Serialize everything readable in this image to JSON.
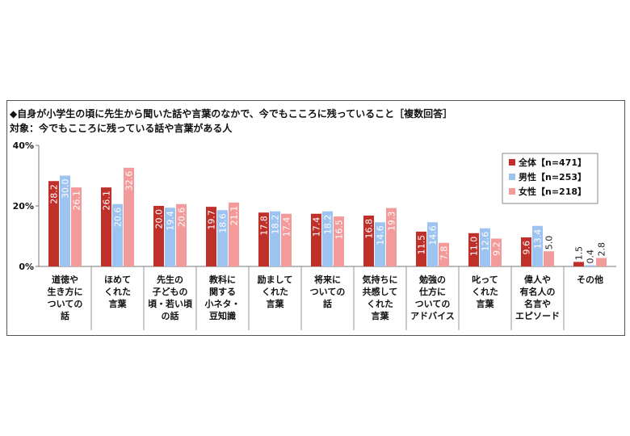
{
  "title": "◆自身が小学生の頃に先生から聞いた話や言葉のなかで、今でもこころに残っていること［複数回答］",
  "subtitle": "対象：今でもこころに残っている話や言葉がある人",
  "colors": {
    "all": "#c0302b",
    "male": "#9dc3f0",
    "female": "#f39a9a"
  },
  "chart_data": {
    "type": "bar",
    "title": "◆自身が小学生の頃に先生から聞いた話や言葉のなかで、今でもこころに残っていること［複数回答］",
    "subtitle": "対象：今でもこころに残っている話や言葉がある人",
    "categories": [
      [
        "道徳や",
        "生き方に",
        "ついての",
        "話"
      ],
      [
        "ほめて",
        "くれた",
        "言葉"
      ],
      [
        "先生の",
        "子どもの",
        "頃・若い頃",
        "の話"
      ],
      [
        "教科に",
        "関する",
        "小ネタ・",
        "豆知識"
      ],
      [
        "励まして",
        "くれた",
        "言葉"
      ],
      [
        "将来に",
        "ついての",
        "話"
      ],
      [
        "気持ちに",
        "共感して",
        "くれた",
        "言葉"
      ],
      [
        "勉強の",
        "仕方に",
        "ついての",
        "アドバイス"
      ],
      [
        "叱って",
        "くれた",
        "言葉"
      ],
      [
        "偉人や",
        "有名人の",
        "名言や",
        "エピソード"
      ],
      [
        "その他"
      ]
    ],
    "series": [
      {
        "name": "全体【n=471】",
        "values": [
          28.2,
          26.1,
          20.0,
          19.7,
          17.8,
          17.4,
          16.8,
          11.5,
          11.0,
          9.6,
          1.5
        ],
        "labels": [
          "28.2",
          "26.1",
          "20.0",
          "19.7",
          "17.8",
          "17.4",
          "16.8",
          "11.5",
          "11.0",
          "9.6",
          "1.5"
        ]
      },
      {
        "name": "男性【n=253】",
        "values": [
          30.0,
          20.6,
          19.4,
          18.6,
          18.2,
          18.2,
          14.6,
          14.6,
          12.6,
          13.4,
          0.4
        ],
        "labels": [
          "30.0",
          "20.6",
          "19.4",
          "18.6",
          "18.2",
          "18.2",
          "14.6",
          "14.6",
          "12.6",
          "13.4",
          "0.4"
        ]
      },
      {
        "name": "女性【n=218】",
        "values": [
          26.1,
          32.6,
          20.6,
          21.1,
          17.4,
          16.5,
          19.3,
          7.8,
          9.2,
          5.0,
          2.8
        ],
        "labels": [
          "26.1",
          "32.6",
          "20.6",
          "21.1",
          "17.4",
          "16.5",
          "19.3",
          "7.8",
          "9.2",
          "5.0",
          "2.8"
        ]
      }
    ],
    "ylim": [
      0,
      40
    ],
    "yticks": [
      "0%",
      "20%",
      "40%"
    ],
    "grid": false,
    "legend_position": "top-right"
  }
}
